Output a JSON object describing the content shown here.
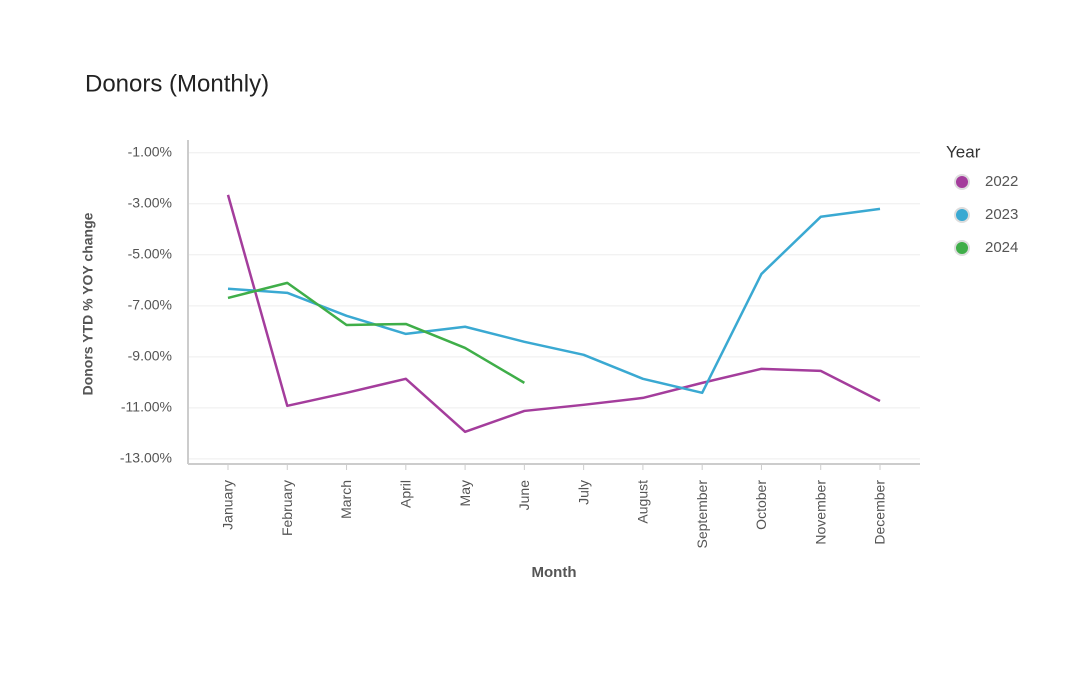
{
  "chart_data": {
    "type": "line",
    "title": "Donors (Monthly)",
    "x_label": "Month",
    "y_label": "Donors YTD % YOY change",
    "legend_title": "Year",
    "legend": "right",
    "grid": true,
    "categories": [
      "January",
      "February",
      "March",
      "April",
      "May",
      "June",
      "July",
      "August",
      "September",
      "October",
      "November",
      "December"
    ],
    "ylim": [
      -13.2,
      -0.5
    ],
    "yticks": [
      {
        "value": -1,
        "label": "-1.00%"
      },
      {
        "value": -3,
        "label": "-3.00%"
      },
      {
        "value": -5,
        "label": "-5.00%"
      },
      {
        "value": -7,
        "label": "-7.00%"
      },
      {
        "value": -9,
        "label": "-9.00%"
      },
      {
        "value": -11,
        "label": "-11.00%"
      },
      {
        "value": -13,
        "label": "-13.00%"
      }
    ],
    "series": [
      {
        "name": "2022",
        "color": "#a43d9c",
        "values": [
          -2.65,
          -10.92,
          -10.41,
          -9.86,
          -11.94,
          -11.12,
          -10.88,
          -10.61,
          -10.02,
          -9.47,
          -9.55,
          -10.73
        ]
      },
      {
        "name": "2023",
        "color": "#3aa9d2",
        "values": [
          -6.33,
          -6.49,
          -7.39,
          -8.1,
          -7.82,
          -8.41,
          -8.92,
          -9.86,
          -10.41,
          -5.75,
          -3.51,
          -3.2
        ]
      },
      {
        "name": "2024",
        "color": "#3fae49",
        "values": [
          -6.69,
          -6.1,
          -7.75,
          -7.71,
          -8.65,
          -10.02,
          null,
          null,
          null,
          null,
          null,
          null
        ]
      }
    ]
  }
}
